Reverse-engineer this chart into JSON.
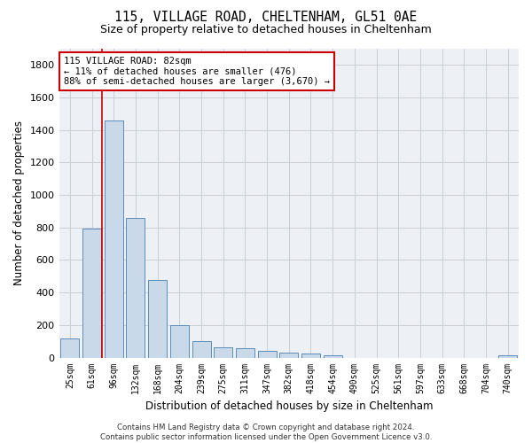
{
  "title": "115, VILLAGE ROAD, CHELTENHAM, GL51 0AE",
  "subtitle": "Size of property relative to detached houses in Cheltenham",
  "xlabel": "Distribution of detached houses by size in Cheltenham",
  "ylabel": "Number of detached properties",
  "categories": [
    "25sqm",
    "61sqm",
    "96sqm",
    "132sqm",
    "168sqm",
    "204sqm",
    "239sqm",
    "275sqm",
    "311sqm",
    "347sqm",
    "382sqm",
    "418sqm",
    "454sqm",
    "490sqm",
    "525sqm",
    "561sqm",
    "597sqm",
    "633sqm",
    "668sqm",
    "704sqm",
    "740sqm"
  ],
  "values": [
    120,
    795,
    1460,
    860,
    475,
    200,
    100,
    65,
    55,
    40,
    30,
    25,
    15,
    0,
    0,
    0,
    0,
    0,
    0,
    0,
    15
  ],
  "bar_color": "#c9d9ea",
  "bar_edge_color": "#5b8db8",
  "grid_color": "#c8d0d8",
  "background_color": "#edf1f6",
  "vline_color": "#cc0000",
  "annotation_line1": "115 VILLAGE ROAD: 82sqm",
  "annotation_line2": "← 11% of detached houses are smaller (476)",
  "annotation_line3": "88% of semi-detached houses are larger (3,670) →",
  "annotation_box_color": "#cc0000",
  "footer_text": "Contains HM Land Registry data © Crown copyright and database right 2024.\nContains public sector information licensed under the Open Government Licence v3.0.",
  "ylim": [
    0,
    1900
  ],
  "yticks": [
    0,
    200,
    400,
    600,
    800,
    1000,
    1200,
    1400,
    1600,
    1800
  ]
}
